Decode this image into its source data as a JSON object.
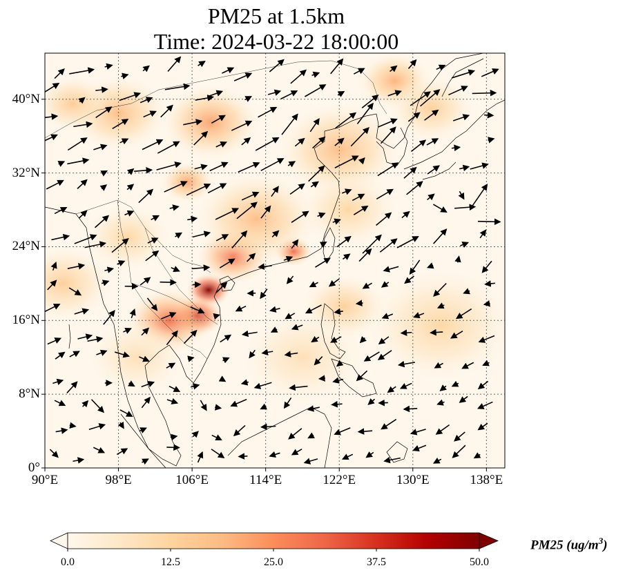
{
  "title": {
    "line1": "PM25 at 1.5km",
    "line2": "Time: 2024-03-22 18:00:00"
  },
  "map": {
    "projection": "PlateCarree",
    "lon_range": [
      90,
      140
    ],
    "lat_range": [
      0,
      45
    ],
    "gridlines": "dotted",
    "coastlines": true,
    "country_borders": true,
    "colormap": "OrRd",
    "lon_ticks": [
      {
        "value": 90,
        "label": "90°E"
      },
      {
        "value": 98,
        "label": "98°E"
      },
      {
        "value": 106,
        "label": "106°E"
      },
      {
        "value": 114,
        "label": "114°E"
      },
      {
        "value": 122,
        "label": "122°E"
      },
      {
        "value": 130,
        "label": "130°E"
      },
      {
        "value": 138,
        "label": "138°E"
      }
    ],
    "lat_ticks": [
      {
        "value": 0,
        "label": "0°"
      },
      {
        "value": 8,
        "label": "8°N"
      },
      {
        "value": 16,
        "label": "16°N"
      },
      {
        "value": 24,
        "label": "24°N"
      },
      {
        "value": 32,
        "label": "32°N"
      },
      {
        "value": 40,
        "label": "40°N"
      }
    ]
  },
  "pm25_hotspots": [
    {
      "lon": 107.8,
      "lat": 19.3,
      "value": 50,
      "spread": 1.8
    },
    {
      "lon": 106.5,
      "lat": 16.5,
      "value": 42,
      "spread": 2.2
    },
    {
      "lon": 103.5,
      "lat": 16.0,
      "value": 30,
      "spread": 3.5
    },
    {
      "lon": 110.5,
      "lat": 23.0,
      "value": 30,
      "spread": 3.0
    },
    {
      "lon": 117.0,
      "lat": 23.5,
      "value": 32,
      "spread": 1.6
    },
    {
      "lon": 113.0,
      "lat": 27.0,
      "value": 18,
      "spread": 5.0
    },
    {
      "lon": 105.5,
      "lat": 31.0,
      "value": 22,
      "spread": 2.2
    },
    {
      "lon": 108.0,
      "lat": 37.5,
      "value": 22,
      "spread": 4.0
    },
    {
      "lon": 98.0,
      "lat": 38.5,
      "value": 18,
      "spread": 4.0
    },
    {
      "lon": 93.0,
      "lat": 39.5,
      "value": 15,
      "spread": 3.0
    },
    {
      "lon": 122.0,
      "lat": 34.5,
      "value": 18,
      "spread": 5.0
    },
    {
      "lon": 128.0,
      "lat": 42.0,
      "value": 20,
      "spread": 3.0
    },
    {
      "lon": 132.0,
      "lat": 39.0,
      "value": 14,
      "spread": 3.5
    },
    {
      "lon": 122.5,
      "lat": 17.5,
      "value": 14,
      "spread": 3.5
    },
    {
      "lon": 133.0,
      "lat": 15.5,
      "value": 12,
      "spread": 6.0
    },
    {
      "lon": 92.0,
      "lat": 20.0,
      "value": 14,
      "spread": 4.0
    },
    {
      "lon": 99.0,
      "lat": 25.0,
      "value": 12,
      "spread": 3.5
    },
    {
      "lon": 100.0,
      "lat": 12.0,
      "value": 9,
      "spread": 4.0
    },
    {
      "lon": 118.0,
      "lat": 12.0,
      "value": 9,
      "spread": 5.0
    },
    {
      "lon": 123.0,
      "lat": 28.0,
      "value": 12,
      "spread": 4.0
    }
  ],
  "colorbar": {
    "title": "PM25 (ug/m",
    "title_sup": "3",
    "title_close": ")",
    "vmin": 0,
    "vmax": 50,
    "extend": "both",
    "ticks": [
      {
        "value": 0,
        "label": "0.0"
      },
      {
        "value": 12.5,
        "label": "12.5"
      },
      {
        "value": 25,
        "label": "25.0"
      },
      {
        "value": 37.5,
        "label": "37.5"
      },
      {
        "value": 50,
        "label": "50.0"
      }
    ],
    "colors": [
      "#fff7ec",
      "#fee8c8",
      "#fdd49e",
      "#fdbb84",
      "#fc8d59",
      "#ef6548",
      "#d7301f",
      "#b30000",
      "#7f0000"
    ]
  },
  "wind_arrows": "quiver field of wind vectors"
}
